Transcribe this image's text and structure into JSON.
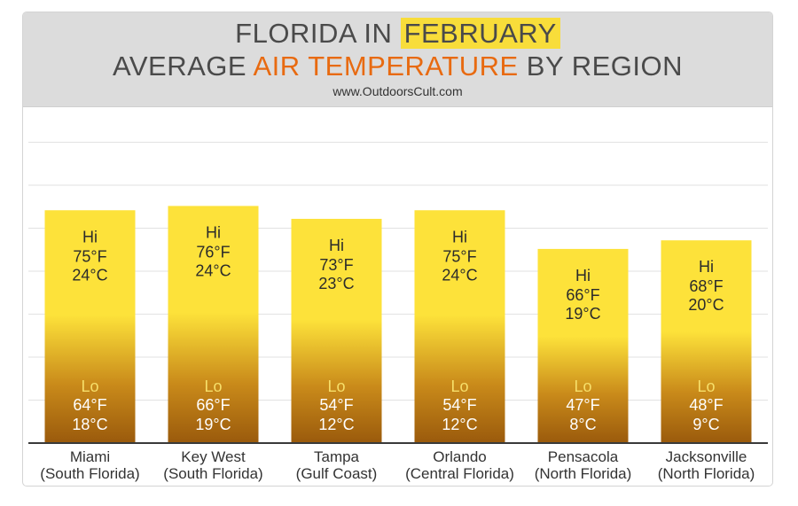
{
  "header": {
    "title_part1": "FLORIDA IN",
    "title_highlight": "FEBRUARY",
    "subtitle_part1": "AVERAGE",
    "subtitle_highlight": "AIR TEMPERATURE",
    "subtitle_part2": "BY REGION",
    "website": "www.OutdoorsCult.com"
  },
  "colors": {
    "highlight_yellow": "#f8dd3a",
    "highlight_orange": "#e86a10",
    "bar_top": "#fde23a",
    "bar_bottom": "#9a5a0c",
    "header_bg": "#dcdcdc"
  },
  "chart_data": {
    "type": "bar",
    "title": "FLORIDA IN FEBRUARY AVERAGE AIR TEMPERATURE BY REGION",
    "categories": [
      "Miami",
      "Key West",
      "Tampa",
      "Orlando",
      "Pensacola",
      "Jacksonville"
    ],
    "category_sublabels": [
      "(South Florida)",
      "(South Florida)",
      "(Gulf Coast)",
      "(Central Florida)",
      "(North Florida)",
      "(North Florida)"
    ],
    "hi_label": "Hi",
    "lo_label": "Lo",
    "series": [
      {
        "name": "Hi",
        "values_f": [
          75,
          76,
          73,
          75,
          66,
          68
        ],
        "labels_f": [
          "75°F",
          "76°F",
          "73°F",
          "75°F",
          "66°F",
          "68°F"
        ],
        "labels_c": [
          "24°C",
          "24°C",
          "23°C",
          "24°C",
          "19°C",
          "20°C"
        ]
      },
      {
        "name": "Lo",
        "values_f": [
          64,
          66,
          54,
          54,
          47,
          48
        ],
        "labels_f": [
          "64°F",
          "66°F",
          "54°F",
          "54°F",
          "47°F",
          "48°F"
        ],
        "labels_c": [
          "18°C",
          "19°C",
          "12°C",
          "12°C",
          "8°C",
          "9°C"
        ]
      }
    ],
    "grid": true,
    "legend": "none"
  }
}
